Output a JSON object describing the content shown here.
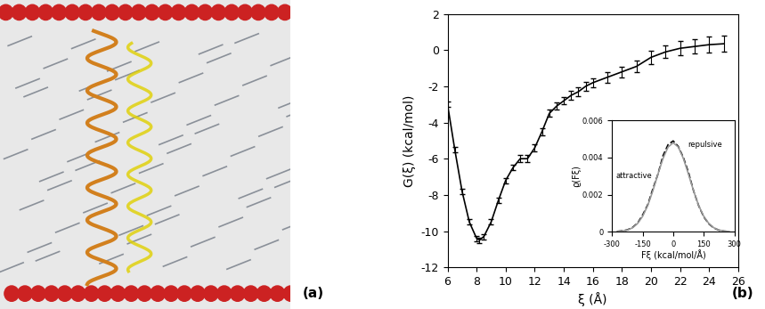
{
  "panels": {
    "a": {
      "label": "(a)"
    },
    "b": {
      "label": "(b)"
    }
  },
  "chart_data": [
    {
      "type": "line",
      "x_label": "ξ (Å)",
      "y_label": "G(ξ) (kcal/mol)",
      "x": [
        6,
        6.5,
        7,
        7.5,
        8,
        8.2,
        8.5,
        9,
        9.5,
        10,
        10.5,
        11,
        11.5,
        12,
        12.5,
        13,
        13.5,
        14,
        14.5,
        15,
        15.5,
        16,
        17,
        18,
        19,
        20,
        21,
        22,
        23,
        24,
        25
      ],
      "values": [
        -3.0,
        -5.5,
        -7.8,
        -9.5,
        -10.4,
        -10.5,
        -10.3,
        -9.5,
        -8.3,
        -7.2,
        -6.5,
        -6.0,
        -6.0,
        -5.4,
        -4.5,
        -3.5,
        -3.1,
        -2.8,
        -2.5,
        -2.3,
        -2.0,
        -1.8,
        -1.5,
        -1.2,
        -0.9,
        -0.4,
        -0.1,
        0.1,
        0.2,
        0.3,
        0.35
      ],
      "error": [
        0.15,
        0.15,
        0.15,
        0.15,
        0.15,
        0.15,
        0.15,
        0.15,
        0.15,
        0.15,
        0.15,
        0.2,
        0.2,
        0.2,
        0.2,
        0.2,
        0.2,
        0.2,
        0.25,
        0.25,
        0.25,
        0.25,
        0.3,
        0.3,
        0.3,
        0.35,
        0.35,
        0.4,
        0.4,
        0.45,
        0.45
      ],
      "color": "#000000",
      "xlim": [
        6,
        26
      ],
      "xticks": [
        6,
        8,
        10,
        12,
        14,
        16,
        18,
        20,
        22,
        24,
        26
      ],
      "ylim": [
        -12,
        2
      ],
      "yticks": [
        -12,
        -10,
        -8,
        -6,
        -4,
        -2,
        0,
        2
      ]
    },
    {
      "type": "line",
      "x_label": "Fξ (kcal/mol/Å)",
      "y_label": "ϱ(Fξ)",
      "annotations": [
        "attractive",
        "repulsive"
      ],
      "x": [
        -275,
        -250,
        -225,
        -200,
        -175,
        -150,
        -125,
        -100,
        -75,
        -50,
        -25,
        0,
        25,
        50,
        75,
        100,
        125,
        150,
        175,
        200,
        225,
        250,
        275
      ],
      "series": [
        {
          "color": "#000000",
          "line_style": "dashed",
          "values": [
            2e-05,
            5e-05,
            0.0001,
            0.00023,
            0.00046,
            0.0009,
            0.00145,
            0.0023,
            0.0031,
            0.0041,
            0.0047,
            0.0049,
            0.0046,
            0.004,
            0.0032,
            0.0022,
            0.0014,
            0.0008,
            0.00042,
            0.0002,
            8e-05,
            3e-05,
            1e-05
          ]
        },
        {
          "color": "#999999",
          "line_style": "solid",
          "values": [
            1e-05,
            4e-05,
            9e-05,
            0.00021,
            0.00044,
            0.00083,
            0.00141,
            0.0022,
            0.0031,
            0.00395,
            0.00457,
            0.0048,
            0.00457,
            0.00395,
            0.0031,
            0.0022,
            0.00141,
            0.00083,
            0.00044,
            0.00021,
            9e-05,
            4e-05,
            1e-05
          ]
        }
      ],
      "xlim": [
        -300,
        300
      ],
      "xticks": [
        -300,
        -150,
        0,
        150,
        300
      ],
      "ylim": [
        0,
        0.006
      ],
      "yticks": [
        0,
        0.002,
        0.004,
        0.006
      ]
    }
  ]
}
